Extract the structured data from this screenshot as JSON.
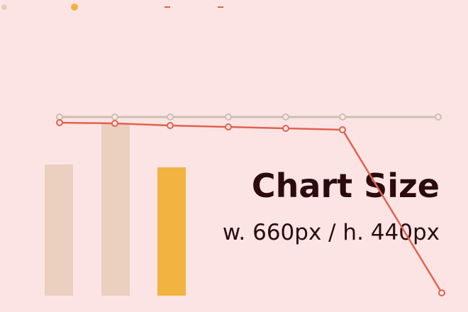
{
  "title": "Chart Size",
  "subtitle": "w. 660px / h. 440px"
}
